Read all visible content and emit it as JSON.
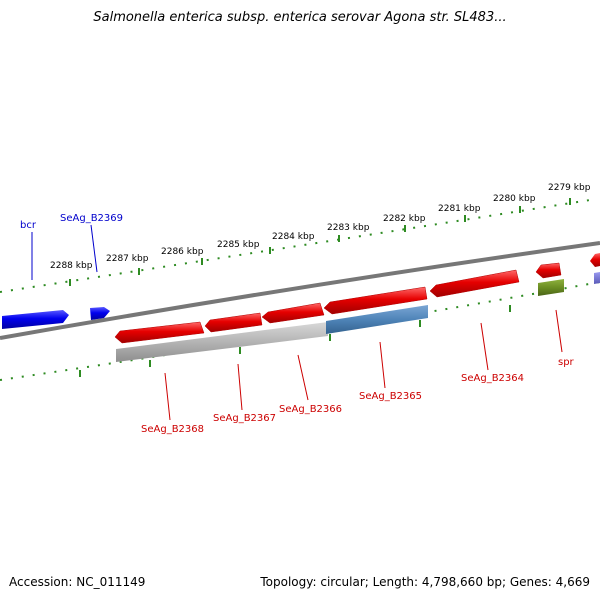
{
  "title": "Salmonella enterica subsp. enterica serovar Agona str. SL483...",
  "footer": {
    "accession_label": "Accession: NC_011149",
    "stats_label": "Topology: circular; Length: 4,798,660 bp; Genes: 4,669"
  },
  "ticks": [
    "2288 kbp",
    "2287 kbp",
    "2286 kbp",
    "2285 kbp",
    "2284 kbp",
    "2283 kbp",
    "2282 kbp",
    "2281 kbp",
    "2280 kbp",
    "2279 kbp"
  ],
  "genes_top": [
    "bcr",
    "SeAg_B2369"
  ],
  "genes_bottom": [
    "SeAg_B2368",
    "SeAg_B2367",
    "SeAg_B2366",
    "SeAg_B2365",
    "SeAg_B2364",
    "spr"
  ],
  "colors": {
    "forward_genes": "#0000ee",
    "reverse_genes": "#ee0000",
    "blue_feature": "#4f84b8",
    "gray_feature": "#aaaaaa",
    "olive_feature": "#6b8e23",
    "tick_marks": "#2e8b22",
    "backbone": "#777777"
  }
}
